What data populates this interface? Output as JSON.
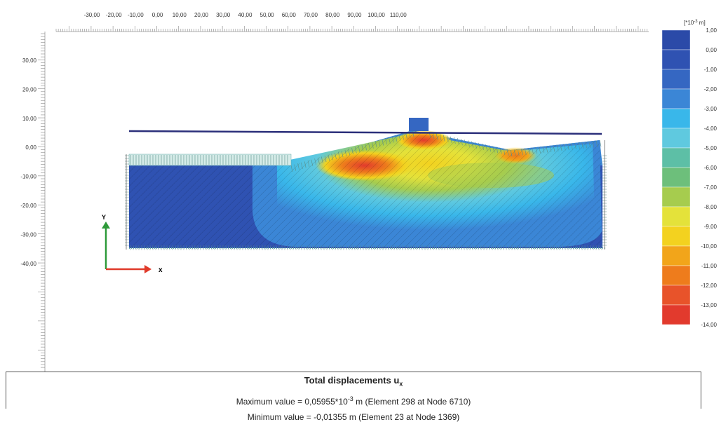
{
  "x_ticks": [
    "-30,00",
    "-20,00",
    "-10,00",
    "0,00",
    "10,00",
    "20,00",
    "30,00",
    "40,00",
    "50,00",
    "60,00",
    "70,00",
    "80,00",
    "90,00",
    "100,00",
    "110,00"
  ],
  "y_ticks": [
    "30,00",
    "20,00",
    "10,00",
    "0,00",
    "-10,00",
    "-20,00",
    "-30,00",
    "-40,00"
  ],
  "legend": {
    "unit_prefix": "[*10",
    "unit_exp": "-3",
    "unit_suffix": " m]",
    "labels": [
      "1,00",
      "0,00",
      "-1,00",
      "-2,00",
      "-3,00",
      "-4,00",
      "-5,00",
      "-6,00",
      "-7,00",
      "-8,00",
      "-9,00",
      "-10,00",
      "-11,00",
      "-12,00",
      "-13,00",
      "-14,00"
    ],
    "colors": [
      "#2b4aa8",
      "#2f52b2",
      "#3567c2",
      "#3b86d6",
      "#39b7ea",
      "#5fc9df",
      "#5dbfa6",
      "#6dbf7b",
      "#a6cc4e",
      "#e4e23a",
      "#f3d21f",
      "#f2a51a",
      "#ee7c1c",
      "#e8532a",
      "#e23a2d"
    ]
  },
  "axes": {
    "y_label": "Y",
    "x_label": "x"
  },
  "info": {
    "title_main": "Total displacements u",
    "title_sub": "x",
    "max_prefix": "Maximum value = 0,05955*10",
    "max_exp": "-3",
    "max_suffix": " m (Element 298 at Node 6710)",
    "min_text": "Minimum value = -0,01355 m (Element 23 at Node 1369)"
  }
}
